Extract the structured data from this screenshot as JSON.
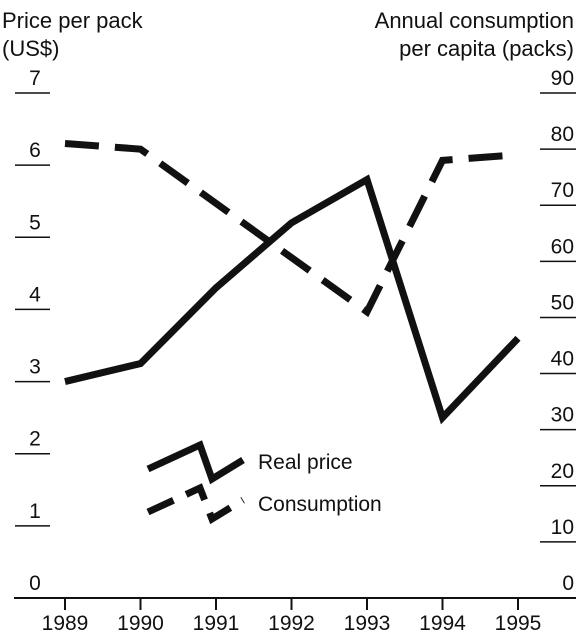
{
  "chart_data": {
    "type": "line",
    "left_axis": {
      "title_line1": "Price per pack",
      "title_line2": "(US$)",
      "range": [
        0,
        7
      ],
      "ticks": [
        "0",
        "1",
        "2",
        "3",
        "4",
        "5",
        "6",
        "7"
      ]
    },
    "right_axis": {
      "title_line1": "Annual consumption",
      "title_line2": "per capita (packs)",
      "range": [
        0,
        90
      ],
      "ticks": [
        "0",
        "10",
        "20",
        "30",
        "40",
        "50",
        "60",
        "70",
        "80",
        "90"
      ]
    },
    "x": [
      "1989",
      "1990",
      "1991",
      "1992",
      "1993",
      "1994",
      "1995"
    ],
    "series": [
      {
        "name": "Real price",
        "axis": "left",
        "style": "solid",
        "x": [
          1989,
          1990,
          1991,
          1992,
          1993,
          1994,
          1995
        ],
        "values": [
          3.0,
          3.25,
          4.3,
          5.2,
          5.8,
          2.5,
          3.6
        ]
      },
      {
        "name": "Consumption",
        "axis": "right",
        "style": "dashed",
        "x": [
          1989,
          1990,
          1993,
          1994,
          1995
        ],
        "values": [
          81,
          80,
          51,
          78,
          79
        ]
      }
    ],
    "grid": false,
    "legend_position": "bottom-center",
    "color": "#111111"
  }
}
